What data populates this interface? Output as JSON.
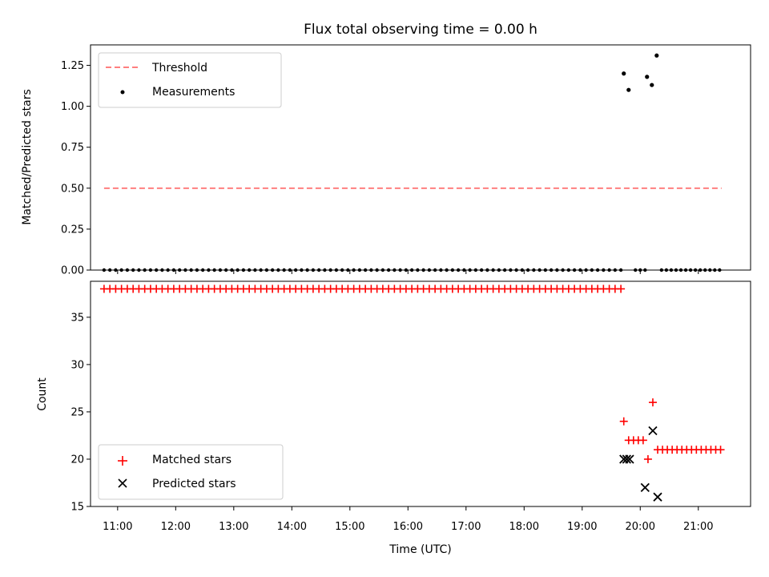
{
  "chart_data": [
    {
      "type": "scatter",
      "panel": "top",
      "title": "Flux total observing time = 0.00 h",
      "ylabel": "Matched/Predicted stars",
      "ylim": [
        0,
        1.375
      ],
      "yticks": [
        "0.00",
        "0.25",
        "0.50",
        "0.75",
        "1.00",
        "1.25"
      ],
      "ytick_values": [
        0,
        0.25,
        0.5,
        0.75,
        1.0,
        1.25
      ],
      "legend": {
        "placement": "upper-left",
        "entries": [
          {
            "label": "Threshold",
            "marker": "dashed-line",
            "color": "#ff7f7f"
          },
          {
            "label": "Measurements",
            "marker": "dot",
            "color": "#000000"
          }
        ]
      },
      "threshold": {
        "name": "Threshold",
        "value": 0.5,
        "x_start": "10:46",
        "x_end": "21:24",
        "color": "#ff7f7f"
      },
      "measurements": {
        "name": "Measurements",
        "zero_runs": [
          {
            "start": "10:46",
            "end": "19:40",
            "step_min": 6
          },
          {
            "start": "19:55",
            "end": "20:05",
            "step_min": 5
          },
          {
            "start": "20:22",
            "end": "21:24",
            "step_min": 5
          }
        ],
        "points": [
          {
            "x": "19:43",
            "y": 1.2
          },
          {
            "x": "19:48",
            "y": 1.1
          },
          {
            "x": "20:07",
            "y": 1.18
          },
          {
            "x": "20:12",
            "y": 1.13
          },
          {
            "x": "20:17",
            "y": 1.31
          }
        ]
      }
    },
    {
      "type": "scatter",
      "panel": "bottom",
      "xlabel": "Time (UTC)",
      "ylabel": "Count",
      "ylim": [
        15,
        38.8
      ],
      "yticks": [
        "15",
        "20",
        "25",
        "30",
        "35"
      ],
      "ytick_values": [
        15,
        20,
        25,
        30,
        35
      ],
      "xticks": [
        "11:00",
        "12:00",
        "13:00",
        "14:00",
        "15:00",
        "16:00",
        "17:00",
        "18:00",
        "19:00",
        "20:00",
        "21:00"
      ],
      "xlim": [
        "10:32",
        "21:54"
      ],
      "legend": {
        "placement": "lower-left",
        "entries": [
          {
            "label": "Matched stars",
            "marker": "plus",
            "color": "#ff0000"
          },
          {
            "label": "Predicted stars",
            "marker": "x",
            "color": "#000000"
          }
        ]
      },
      "matched": {
        "name": "Matched stars",
        "runs": [
          {
            "start": "10:46",
            "end": "19:40",
            "step_min": 6,
            "y": 38
          },
          {
            "start": "20:18",
            "end": "21:24",
            "step_min": 5,
            "y": 21
          }
        ],
        "points": [
          {
            "x": "19:43",
            "y": 24
          },
          {
            "x": "19:48",
            "y": 22
          },
          {
            "x": "19:53",
            "y": 22
          },
          {
            "x": "19:58",
            "y": 22
          },
          {
            "x": "20:03",
            "y": 22
          },
          {
            "x": "20:08",
            "y": 20
          },
          {
            "x": "20:13",
            "y": 26
          }
        ]
      },
      "predicted": {
        "name": "Predicted stars",
        "points": [
          {
            "x": "19:43",
            "y": 20
          },
          {
            "x": "19:46",
            "y": 20
          },
          {
            "x": "19:49",
            "y": 20
          },
          {
            "x": "20:05",
            "y": 17
          },
          {
            "x": "20:13",
            "y": 23
          },
          {
            "x": "20:18",
            "y": 16
          }
        ]
      }
    }
  ]
}
